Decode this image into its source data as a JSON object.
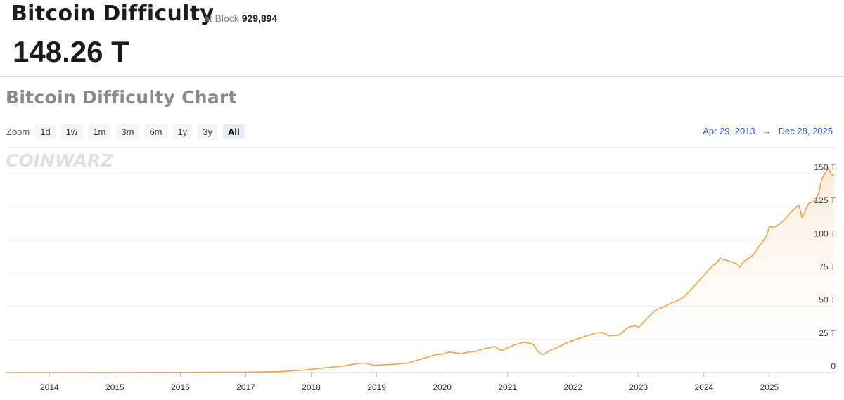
{
  "header": {
    "title": "Bitcoin Difficulty",
    "at_block_label": "at Block",
    "block_number": "929,894",
    "current_value": "148.26 T"
  },
  "chart_section": {
    "title": "Bitcoin Difficulty Chart",
    "zoom_label": "Zoom",
    "zoom_options": [
      "1d",
      "1w",
      "1m",
      "3m",
      "6m",
      "1y",
      "3y",
      "All"
    ],
    "zoom_selected": "All",
    "range_start": "Apr 29, 2013",
    "range_arrow": "→",
    "range_end": "Dec 28, 2025",
    "watermark": "COINWARZ"
  },
  "colors": {
    "line": "#f0a24a",
    "fill_top": "#fbe8d6",
    "accent_link": "#3355cc"
  },
  "chart_data": {
    "type": "area",
    "title": "Bitcoin Difficulty Chart",
    "xlabel": "",
    "ylabel": "",
    "x_ticks": [
      "2014",
      "2015",
      "2016",
      "2017",
      "2018",
      "2019",
      "2020",
      "2021",
      "2022",
      "2023",
      "2024",
      "2025"
    ],
    "y_ticks": [
      "0",
      "25 T",
      "50 T",
      "75 T",
      "100 T",
      "125 T",
      "150 T"
    ],
    "ylim": [
      0,
      150
    ],
    "xlim": [
      2013.33,
      2025.99
    ],
    "grid": true,
    "series": [
      {
        "points": [
          [
            2013.33,
            0.0
          ],
          [
            2014.0,
            0.001
          ],
          [
            2015.0,
            0.04
          ],
          [
            2016.0,
            0.1
          ],
          [
            2016.5,
            0.2
          ],
          [
            2017.0,
            0.3
          ],
          [
            2017.5,
            0.7
          ],
          [
            2017.9,
            1.9
          ],
          [
            2018.0,
            2.5
          ],
          [
            2018.2,
            3.5
          ],
          [
            2018.5,
            5.0
          ],
          [
            2018.75,
            7.1
          ],
          [
            2018.85,
            7.0
          ],
          [
            2018.95,
            5.5
          ],
          [
            2019.0,
            5.6
          ],
          [
            2019.3,
            6.3
          ],
          [
            2019.5,
            7.5
          ],
          [
            2019.7,
            10.5
          ],
          [
            2019.9,
            13.5
          ],
          [
            2020.0,
            13.8
          ],
          [
            2020.1,
            15.5
          ],
          [
            2020.3,
            14.2
          ],
          [
            2020.4,
            15.5
          ],
          [
            2020.5,
            15.8
          ],
          [
            2020.6,
            17.4
          ],
          [
            2020.8,
            19.7
          ],
          [
            2020.9,
            16.5
          ],
          [
            2021.0,
            18.6
          ],
          [
            2021.1,
            20.8
          ],
          [
            2021.25,
            22.9
          ],
          [
            2021.35,
            22.0
          ],
          [
            2021.4,
            21.0
          ],
          [
            2021.45,
            16.7
          ],
          [
            2021.5,
            14.4
          ],
          [
            2021.55,
            13.7
          ],
          [
            2021.65,
            16.8
          ],
          [
            2021.75,
            18.7
          ],
          [
            2021.9,
            22.3
          ],
          [
            2022.0,
            24.3
          ],
          [
            2022.2,
            27.6
          ],
          [
            2022.35,
            29.8
          ],
          [
            2022.45,
            30.3
          ],
          [
            2022.55,
            27.7
          ],
          [
            2022.7,
            28.3
          ],
          [
            2022.85,
            34.2
          ],
          [
            2022.95,
            35.4
          ],
          [
            2023.0,
            34.0
          ],
          [
            2023.1,
            39.3
          ],
          [
            2023.25,
            46.8
          ],
          [
            2023.4,
            50.0
          ],
          [
            2023.5,
            52.4
          ],
          [
            2023.6,
            54.1
          ],
          [
            2023.7,
            57.3
          ],
          [
            2023.8,
            62.4
          ],
          [
            2023.9,
            68.0
          ],
          [
            2024.0,
            73.2
          ],
          [
            2024.1,
            79.0
          ],
          [
            2024.2,
            83.1
          ],
          [
            2024.25,
            86.0
          ],
          [
            2024.3,
            85.3
          ],
          [
            2024.4,
            83.8
          ],
          [
            2024.5,
            82.0
          ],
          [
            2024.55,
            79.5
          ],
          [
            2024.6,
            83.5
          ],
          [
            2024.75,
            88.4
          ],
          [
            2024.85,
            95.7
          ],
          [
            2024.95,
            102.3
          ],
          [
            2025.0,
            109.8
          ],
          [
            2025.1,
            110.0
          ],
          [
            2025.2,
            113.8
          ],
          [
            2025.35,
            121.9
          ],
          [
            2025.45,
            126.4
          ],
          [
            2025.5,
            116.9
          ],
          [
            2025.6,
            127.6
          ],
          [
            2025.7,
            129.4
          ],
          [
            2025.75,
            134.7
          ],
          [
            2025.8,
            146.0
          ],
          [
            2025.85,
            150.3
          ],
          [
            2025.9,
            154.2
          ],
          [
            2025.95,
            149.3
          ],
          [
            2025.99,
            148.26
          ]
        ]
      }
    ]
  }
}
